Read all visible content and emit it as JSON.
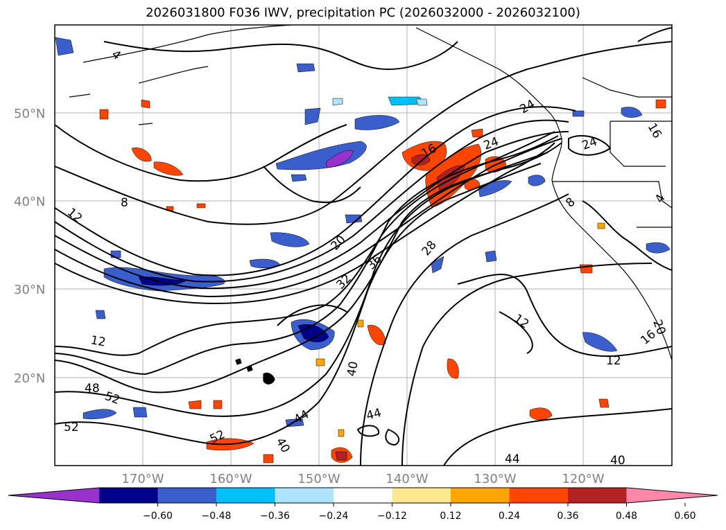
{
  "title": "2026031800 F036 IWV, precipitation PC (2026032000 - 2026032100)",
  "latitude_labels": [
    "50°N",
    "40°N",
    "30°N",
    "20°N"
  ],
  "longitude_labels": [
    "170°W",
    "160°W",
    "150°W",
    "140°W",
    "130°W",
    "120°W"
  ],
  "colorbar": {
    "ticks": [
      "−0.60",
      "−0.48",
      "−0.36",
      "−0.24",
      "−0.12",
      "0.12",
      "0.24",
      "0.36",
      "0.48",
      "0.60"
    ],
    "colors": [
      "#9932cc",
      "#00008b",
      "#3a5fcd",
      "#00bfff",
      "#aee4ff",
      "#ffffff",
      "#ffe990",
      "#ffa500",
      "#ff4500",
      "#b22222",
      "#ff88aa"
    ]
  },
  "iwv_contour_labels": [
    "4",
    "8",
    "12",
    "16",
    "20",
    "24",
    "28",
    "32",
    "36",
    "40",
    "44",
    "48",
    "52",
    "12",
    "16",
    "20",
    "24",
    "12",
    "12",
    "16",
    "4",
    "8",
    "44",
    "44",
    "52",
    "52",
    "40",
    "40",
    "24"
  ]
}
